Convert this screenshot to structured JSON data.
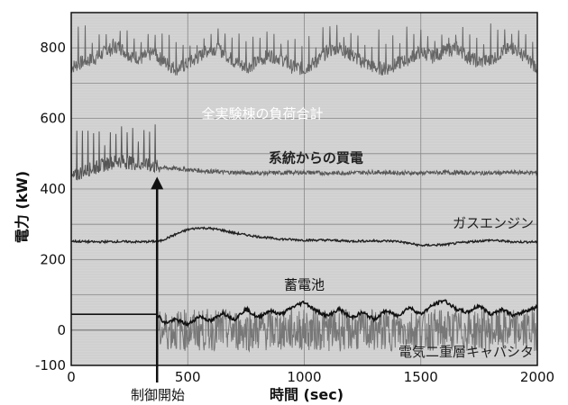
{
  "chart_data": {
    "type": "line",
    "title": "",
    "xlabel": "時間 (sec)",
    "ylabel": "電力 (kW)",
    "xlim": [
      0,
      2000
    ],
    "ylim": [
      -100,
      900
    ],
    "xticks": [
      0,
      500,
      1000,
      1500,
      2000
    ],
    "yticks": [
      -100,
      0,
      200,
      400,
      600,
      800
    ],
    "grid": true,
    "background": "#d4d4d4",
    "series": [
      {
        "name": "全実験棟の負荷合計",
        "color": "#666666",
        "label_color": "#ffffff",
        "x": [
          0,
          50,
          100,
          150,
          200,
          250,
          300,
          350,
          400,
          450,
          500,
          550,
          600,
          650,
          700,
          750,
          800,
          850,
          900,
          950,
          1000,
          1050,
          1100,
          1150,
          1200,
          1250,
          1300,
          1350,
          1400,
          1450,
          1500,
          1550,
          1600,
          1650,
          1700,
          1750,
          1800,
          1850,
          1900,
          1950,
          2000
        ],
        "y": [
          745,
          760,
          770,
          790,
          805,
          780,
          770,
          785,
          760,
          740,
          755,
          775,
          800,
          790,
          760,
          745,
          760,
          780,
          770,
          745,
          740,
          760,
          790,
          800,
          780,
          760,
          745,
          740,
          755,
          770,
          790,
          775,
          790,
          800,
          775,
          760,
          765,
          790,
          800,
          770,
          745
        ],
        "peaks": [
          870,
          880,
          865,
          845,
          850,
          840,
          830,
          850,
          860,
          855,
          850,
          840
        ]
      },
      {
        "name": "系統からの買電",
        "color": "#555555",
        "label_color": "#222222",
        "x": [
          0,
          50,
          100,
          150,
          200,
          250,
          300,
          350,
          400,
          450,
          500,
          550,
          600,
          650,
          700,
          750,
          800,
          900,
          1000,
          1100,
          1200,
          1300,
          1400,
          1500,
          1600,
          1700,
          1800,
          1900,
          2000
        ],
        "y": [
          430,
          450,
          460,
          470,
          480,
          475,
          470,
          465,
          460,
          458,
          455,
          452,
          450,
          448,
          447,
          446,
          445,
          446,
          447,
          445,
          446,
          448,
          446,
          445,
          447,
          446,
          445,
          447,
          446
        ],
        "peaks": [
          530,
          570,
          560,
          575,
          555,
          570
        ]
      },
      {
        "name": "ガスエンジン",
        "color": "#222222",
        "label_color": "#222222",
        "x": [
          0,
          100,
          200,
          300,
          380,
          450,
          500,
          550,
          600,
          650,
          700,
          800,
          900,
          1000,
          1100,
          1200,
          1300,
          1400,
          1500,
          1600,
          1700,
          1800,
          1900,
          2000
        ],
        "y": [
          252,
          250,
          251,
          250,
          252,
          272,
          285,
          290,
          288,
          283,
          275,
          265,
          258,
          255,
          255,
          252,
          253,
          252,
          240,
          242,
          250,
          255,
          250,
          250
        ]
      },
      {
        "name": "蓄電池",
        "color": "#111111",
        "label_color": "#111111",
        "x": [
          0,
          100,
          200,
          300,
          370,
          400,
          450,
          500,
          550,
          600,
          650,
          700,
          750,
          800,
          850,
          900,
          950,
          1000,
          1050,
          1100,
          1150,
          1200,
          1250,
          1300,
          1350,
          1400,
          1450,
          1500,
          1550,
          1600,
          1650,
          1700,
          1750,
          1800,
          1850,
          1900,
          1950,
          2000
        ],
        "y": [
          45,
          45,
          45,
          45,
          45,
          20,
          30,
          15,
          40,
          25,
          50,
          30,
          60,
          35,
          55,
          45,
          65,
          80,
          55,
          40,
          60,
          35,
          50,
          30,
          55,
          40,
          65,
          45,
          70,
          85,
          60,
          50,
          70,
          45,
          60,
          40,
          55,
          65
        ]
      },
      {
        "name": "電気二重層キャパシタ",
        "color": "#777777",
        "label_color": "#222222",
        "x": [
          0,
          100,
          200,
          300,
          370,
          380,
          2000
        ],
        "y": [
          0,
          0,
          0,
          0,
          0,
          0,
          0
        ],
        "oscillation_amplitude": 60
      }
    ],
    "annotations": [
      {
        "text": "制御開始",
        "x": 380
      }
    ]
  },
  "colors": {
    "plot_background": "#d4d4d4",
    "grid": "#888888",
    "frame": "#111111"
  }
}
